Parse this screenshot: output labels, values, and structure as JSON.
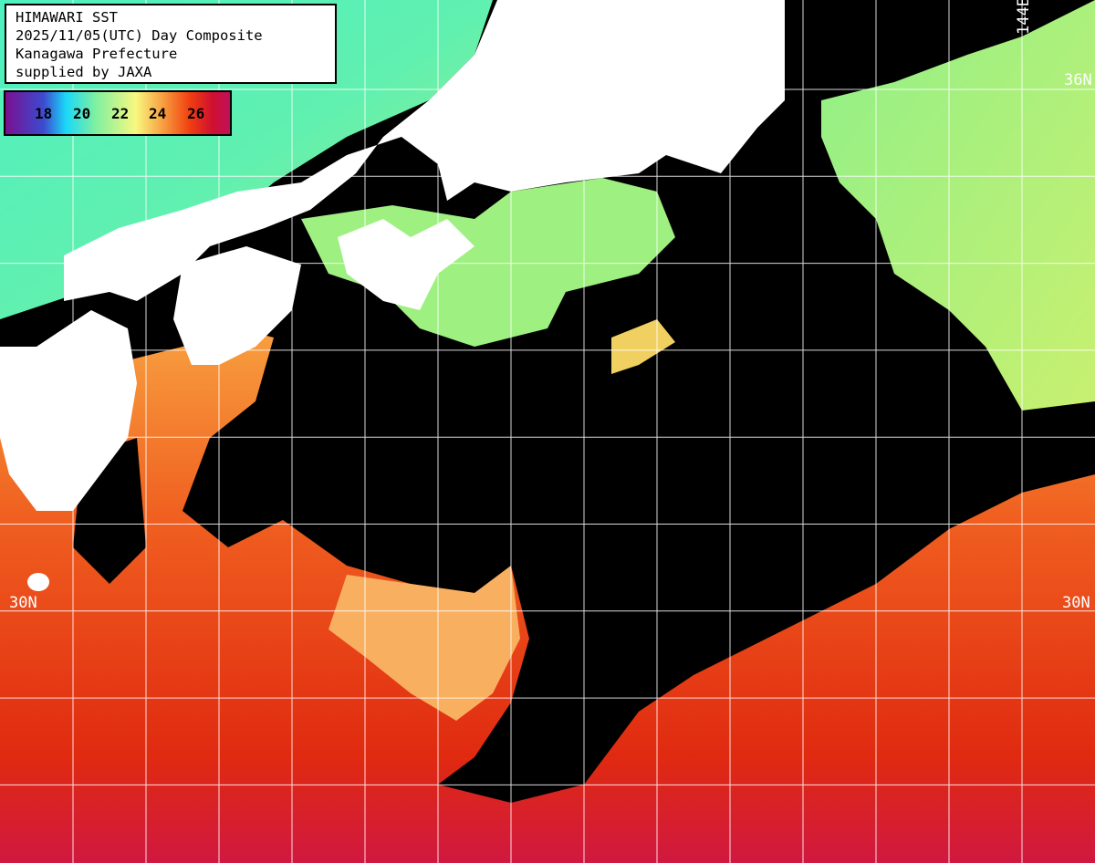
{
  "title_box": {
    "lines": [
      "HIMAWARI SST",
      "2025/11/05(UTC) Day Composite",
      "Kanagawa Prefecture",
      "supplied by JAXA"
    ]
  },
  "legend": {
    "ticks": [
      "18",
      "20",
      "22",
      "24",
      "26"
    ],
    "colors": [
      "#7a1090",
      "#3c4bd0",
      "#1ad8f8",
      "#7ef0a0",
      "#f8f880",
      "#f8a040",
      "#f04010",
      "#d01030",
      "#c0105a"
    ]
  },
  "grid_labels": {
    "lon_144": "144E",
    "lat_36": "36N",
    "lat_30_left": "30N",
    "lat_30_right": "30N"
  },
  "colors": {
    "land": "#ffffff",
    "cloud_nodata": "#000000",
    "grid": "#ffffff"
  }
}
